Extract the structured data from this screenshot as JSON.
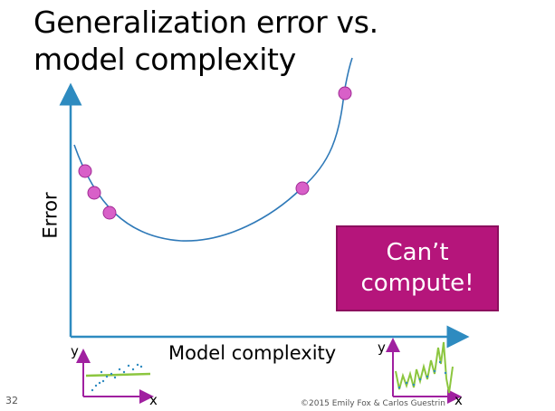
{
  "slide": {
    "title_line1": "Generalization error vs.",
    "title_line2": "model complexity",
    "y_axis_label": "Error",
    "x_axis_label": "Model complexity",
    "callout_line1": "Can’t",
    "callout_line2": "compute!",
    "inset_left": {
      "y_label": "y",
      "x_label": "x"
    },
    "inset_right": {
      "y_label": "y",
      "x_label": "x"
    },
    "page_number": "32",
    "footer": "©2015 Emily Fox & Carlos Guestrin"
  },
  "colors": {
    "axis": "#2e8bc0",
    "curve": "#2e79b8",
    "points": "#d860c8",
    "callout_bg": "#b5157b",
    "inset_axis": "#a020a0",
    "inset_fit": "#8cc63f",
    "inset_points": "#2e8bc0"
  }
}
